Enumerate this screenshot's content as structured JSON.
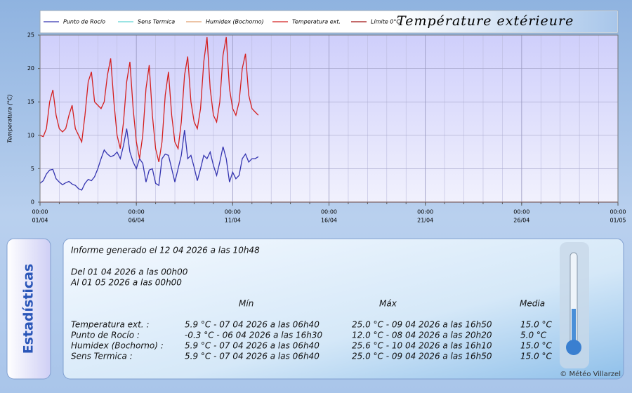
{
  "chart_data": {
    "type": "line",
    "title": "Température extérieure",
    "y_label": "Temperatura (°C)",
    "x": [
      0,
      4,
      8,
      12,
      16,
      20,
      24,
      28,
      32,
      36,
      40,
      44,
      48,
      52,
      56,
      60,
      64,
      68,
      72,
      76,
      80,
      84,
      88,
      92,
      96,
      100,
      104,
      108,
      112,
      116,
      120,
      124,
      128,
      132,
      136,
      140,
      144,
      148,
      152,
      156,
      160,
      164,
      168,
      172,
      176,
      180,
      184,
      188,
      192,
      196,
      200,
      204,
      208,
      212,
      216,
      220,
      224,
      228,
      232,
      236,
      240,
      244,
      248,
      252,
      256,
      260,
      264,
      268,
      272
    ],
    "xlim": [
      0,
      720
    ],
    "xticks": [
      {
        "value": 0,
        "label": "00:00"
      },
      {
        "value": 120,
        "label": "00:00"
      },
      {
        "value": 240,
        "label": "00:00"
      },
      {
        "value": 360,
        "label": "00:00"
      },
      {
        "value": 480,
        "label": "00:00"
      },
      {
        "value": 600,
        "label": "00:00"
      },
      {
        "value": 720,
        "label": "00:00"
      }
    ],
    "xtick_dates": [
      "01/04",
      "06/04",
      "11/04",
      "16/04",
      "21/04",
      "26/04",
      "01/05"
    ],
    "x_minor_step": 24,
    "ylim": [
      0,
      25
    ],
    "yticks": [
      0,
      5,
      10,
      15,
      20,
      25
    ],
    "grid": true,
    "series": [
      {
        "name": "Punto de Rocío",
        "color": "#3535b0",
        "values": [
          2.8,
          3.2,
          4.2,
          4.8,
          4.9,
          3.5,
          3.0,
          2.6,
          2.9,
          3.1,
          2.7,
          2.5,
          2.0,
          1.8,
          2.8,
          3.4,
          3.2,
          3.8,
          5.0,
          6.5,
          7.8,
          7.2,
          6.8,
          7.0,
          7.5,
          6.5,
          8.5,
          11.0,
          7.5,
          6.0,
          5.0,
          6.5,
          5.8,
          3.0,
          4.8,
          5.0,
          2.8,
          2.5,
          6.5,
          7.2,
          7.0,
          5.0,
          3.0,
          5.0,
          7.0,
          10.8,
          6.5,
          7.0,
          5.2,
          3.2,
          5.0,
          7.0,
          6.5,
          7.5,
          5.5,
          4.0,
          6.0,
          8.3,
          6.5,
          3.0,
          4.5,
          3.5,
          4.0,
          6.5,
          7.2,
          6.0,
          6.5,
          6.5,
          6.8
        ]
      },
      {
        "name": "Sens Termica",
        "color": "#5fd3d3",
        "values": [
          null,
          null,
          null,
          null,
          null,
          null,
          null,
          null,
          null,
          null,
          null,
          null,
          null,
          null,
          null,
          null,
          null,
          null,
          null,
          null,
          null,
          null,
          null,
          null,
          null,
          null,
          null,
          null,
          null,
          null,
          null,
          null,
          null,
          null,
          null,
          null,
          null,
          null,
          null,
          null,
          null,
          null,
          null,
          null,
          null,
          null,
          null,
          null,
          null,
          null,
          null,
          null,
          null,
          null,
          null,
          null,
          null,
          null,
          null,
          null,
          null,
          null,
          null,
          null,
          null,
          null,
          null,
          null,
          null
        ]
      },
      {
        "name": "Humidex (Bochorno)",
        "color": "#e0a070",
        "values": [
          null,
          null,
          null,
          null,
          null,
          null,
          null,
          null,
          null,
          null,
          null,
          null,
          null,
          null,
          null,
          null,
          null,
          null,
          null,
          null,
          null,
          null,
          null,
          null,
          null,
          null,
          null,
          null,
          null,
          null,
          null,
          null,
          null,
          null,
          null,
          null,
          null,
          null,
          null,
          null,
          null,
          null,
          null,
          null,
          null,
          null,
          null,
          null,
          null,
          null,
          null,
          null,
          null,
          null,
          null,
          null,
          null,
          null,
          null,
          null,
          null,
          null,
          null,
          null,
          null,
          null,
          null,
          null,
          null
        ]
      },
      {
        "name": "Temperatura ext.",
        "color": "#d42020",
        "values": [
          10.0,
          9.8,
          11.0,
          15.0,
          16.8,
          13.0,
          11.0,
          10.5,
          11.0,
          13.0,
          14.5,
          11.0,
          10.0,
          9.0,
          13.0,
          18.0,
          19.5,
          15.0,
          14.5,
          14.0,
          15.0,
          19.0,
          21.5,
          15.0,
          10.0,
          8.0,
          12.0,
          18.0,
          21.0,
          14.0,
          9.0,
          6.5,
          10.0,
          17.0,
          20.5,
          13.0,
          8.0,
          6.0,
          9.0,
          16.0,
          19.5,
          13.0,
          9.0,
          8.0,
          12.0,
          19.0,
          21.8,
          15.0,
          12.0,
          11.0,
          14.0,
          21.0,
          24.7,
          17.0,
          13.0,
          12.0,
          15.0,
          22.0,
          24.7,
          17.0,
          14.0,
          13.0,
          15.0,
          20.0,
          22.2,
          16.0,
          14.0,
          13.5,
          13.0
        ]
      },
      {
        "name": "Límite 0°C",
        "color": "#a01010",
        "x": [
          0,
          720
        ],
        "values": [
          0,
          0
        ]
      }
    ]
  },
  "stats": {
    "side_title": "Estadísticas",
    "generated": "Informe generado el 12 04 2026 a las 10h48",
    "from": "Del 01 04 2026 a las 00h00",
    "to": "Al 01 05 2026 a las 00h00",
    "headers": [
      "Mín",
      "Máx",
      "Media"
    ],
    "rows": [
      [
        "Temperatura ext. :",
        "5.9 °C - 07 04 2026 a las 06h40",
        "25.0 °C - 09 04 2026 a las 16h50",
        "15.0 °C"
      ],
      [
        "Punto de Rocío :",
        "-0.3 °C - 06 04 2026 a las 16h30",
        "12.0 °C - 08 04 2026 a las 20h20",
        "5.0 °C"
      ],
      [
        "Humidex (Bochorno) :",
        "5.9 °C - 07 04 2026 a las 06h40",
        "25.6 °C - 10 04 2026 a las 16h10",
        "15.0 °C"
      ],
      [
        "Sens Termica :",
        "5.9 °C - 07 04 2026 a las 06h40",
        "25.0 °C - 09 04 2026 a las 16h50",
        "15.0 °C"
      ]
    ],
    "credit": "© Météo Villarzel"
  }
}
